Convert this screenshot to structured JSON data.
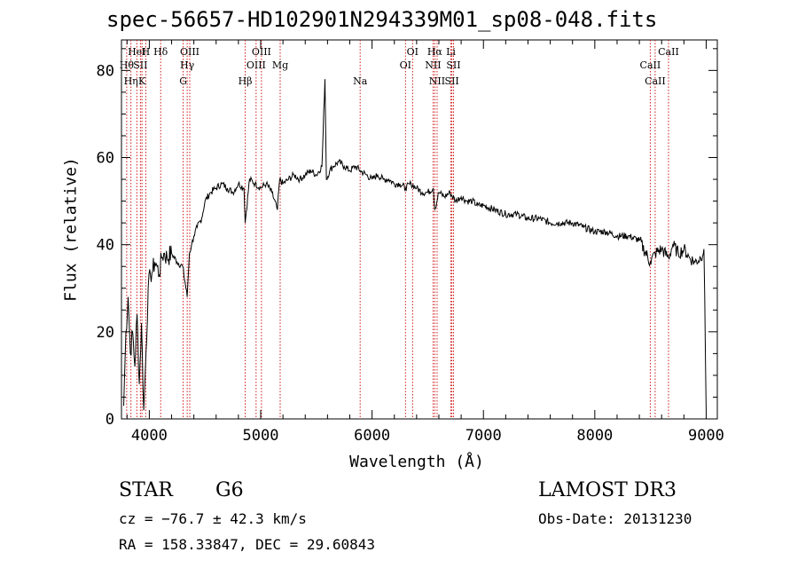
{
  "chart_data": {
    "type": "line",
    "title": "spec-56657-HD102901N294339M01_sp08-048.fits",
    "xlabel": "Wavelength (Å)",
    "ylabel": "Flux (relative)",
    "xlim": [
      3750,
      9100
    ],
    "ylim": [
      0,
      87
    ],
    "xticks": [
      4000,
      5000,
      6000,
      7000,
      8000,
      9000
    ],
    "yticks": [
      0,
      20,
      40,
      60,
      80
    ],
    "series": [
      {
        "name": "spectrum",
        "x": [
          3770,
          3790,
          3810,
          3830,
          3850,
          3870,
          3890,
          3910,
          3930,
          3950,
          3970,
          3990,
          4010,
          4030,
          4050,
          4070,
          4090,
          4110,
          4130,
          4160,
          4200,
          4250,
          4300,
          4340,
          4360,
          4380,
          4400,
          4430,
          4470,
          4500,
          4550,
          4600,
          4650,
          4700,
          4750,
          4800,
          4850,
          4861,
          4900,
          4950,
          5000,
          5050,
          5100,
          5150,
          5170,
          5200,
          5250,
          5300,
          5350,
          5400,
          5450,
          5500,
          5550,
          5577,
          5590,
          5620,
          5650,
          5700,
          5750,
          5800,
          5850,
          5893,
          5950,
          6000,
          6050,
          6100,
          6150,
          6200,
          6250,
          6300,
          6350,
          6400,
          6450,
          6500,
          6550,
          6563,
          6600,
          6650,
          6700,
          6750,
          6800,
          6850,
          6900,
          6950,
          7000,
          7100,
          7200,
          7300,
          7400,
          7500,
          7600,
          7700,
          7800,
          7900,
          8000,
          8100,
          8200,
          8300,
          8400,
          8498,
          8542,
          8600,
          8662,
          8700,
          8750,
          8800,
          8850,
          8900,
          8950,
          8980,
          9000
        ],
        "y": [
          3,
          20,
          28,
          15,
          20,
          12,
          24,
          8,
          22,
          2,
          15,
          30,
          33,
          34,
          36,
          35,
          33,
          37,
          38,
          37,
          38,
          36,
          35,
          28,
          38,
          40,
          42,
          44,
          46,
          50,
          52,
          53,
          54,
          53,
          52,
          54,
          53,
          45,
          55,
          54,
          53,
          54,
          52,
          48,
          55,
          54,
          55,
          56,
          55,
          56,
          57,
          56,
          58,
          78,
          55,
          57,
          58,
          59,
          58,
          57,
          58,
          57,
          56,
          55,
          56,
          55,
          55,
          54,
          54,
          53,
          54,
          53,
          52,
          52,
          53,
          48,
          52,
          51,
          52,
          50,
          51,
          50,
          50,
          49,
          49,
          48,
          47,
          47,
          46,
          46,
          45,
          45,
          45,
          44,
          43,
          43,
          42,
          42,
          41,
          36,
          38,
          39,
          37,
          40,
          38,
          39,
          37,
          36,
          37,
          39,
          2
        ]
      }
    ],
    "annotations": [
      {
        "label": "HeI",
        "x": 3888
      },
      {
        "label": "SII",
        "x": 3920
      },
      {
        "label": "Hη",
        "x": 3835
      },
      {
        "label": "H",
        "x": 3968
      },
      {
        "label": "Hθ",
        "x": 3797
      },
      {
        "label": "K",
        "x": 3934
      },
      {
        "label": "Hδ",
        "x": 4102
      },
      {
        "label": "Hγ",
        "x": 4340
      },
      {
        "label": "G",
        "x": 4304
      },
      {
        "label": "OIII",
        "x": 4363
      },
      {
        "label": "OIII",
        "x": 4959
      },
      {
        "label": "Hβ",
        "x": 4861
      },
      {
        "label": "OIII",
        "x": 5007
      },
      {
        "label": "Mg",
        "x": 5175
      },
      {
        "label": "Na",
        "x": 5893
      },
      {
        "label": "OI",
        "x": 6364
      },
      {
        "label": "OI",
        "x": 6300
      },
      {
        "label": "NII",
        "x": 6584
      },
      {
        "label": "Li",
        "x": 6708
      },
      {
        "label": "NII",
        "x": 6548
      },
      {
        "label": "SII",
        "x": 6717
      },
      {
        "label": "Hα",
        "x": 6563
      },
      {
        "label": "SII",
        "x": 6731
      },
      {
        "label": "CaII",
        "x": 8542
      },
      {
        "label": "CaII",
        "x": 8662
      },
      {
        "label": "CaII",
        "x": 8498
      }
    ]
  },
  "info": {
    "class": "STAR",
    "subclass": "G6",
    "survey": "LAMOST DR3",
    "cz": "cz = −76.7 ± 42.3 km/s",
    "obsdate": "Obs-Date: 20131230",
    "radec": "RA = 158.33847, DEC =  29.60843"
  }
}
